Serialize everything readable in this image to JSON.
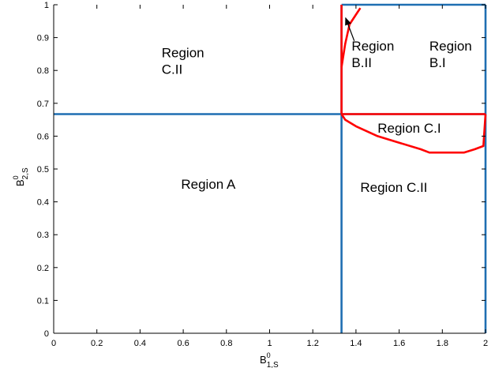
{
  "chart_data": {
    "type": "line",
    "title": "",
    "xlabel": {
      "base": "B",
      "sup": "0",
      "sub": "1,S"
    },
    "ylabel": {
      "base": "B",
      "sup": "0",
      "sub": "2,S"
    },
    "xlim": [
      0,
      2
    ],
    "ylim": [
      0,
      1
    ],
    "xticks": [
      0,
      0.2,
      0.4,
      0.6,
      0.8,
      1,
      1.2,
      1.4,
      1.6,
      1.8,
      2
    ],
    "xtick_labels": [
      "0",
      "0.2",
      "0.4",
      "0.6",
      "0.8",
      "1",
      "1.2",
      "1.4",
      "1.6",
      "1.8",
      "2"
    ],
    "yticks": [
      0,
      0.1,
      0.2,
      0.3,
      0.4,
      0.5,
      0.6,
      0.7,
      0.8,
      0.9,
      1
    ],
    "ytick_labels": [
      "0",
      "0.1",
      "0.2",
      "0.3",
      "0.4",
      "0.5",
      "0.6",
      "0.7",
      "0.8",
      "0.9",
      "1"
    ],
    "grid": false,
    "colors": {
      "boundary": "#1f6fb2",
      "region_curve": "#ff0000",
      "arrow": "#000000"
    },
    "series": [
      {
        "color": "#1f6fb2",
        "x": [
          0,
          2
        ],
        "y": [
          0.667,
          0.667
        ]
      },
      {
        "color": "#1f6fb2",
        "x": [
          1.333,
          1.333
        ],
        "y": [
          0,
          1
        ]
      },
      {
        "color": "#1f6fb2",
        "x": [
          1.333,
          2
        ],
        "y": [
          1,
          1
        ]
      },
      {
        "color": "#1f6fb2",
        "x": [
          2,
          2
        ],
        "y": [
          0,
          1
        ]
      },
      {
        "color": "#ff0000",
        "x": [
          1.333,
          2
        ],
        "y": [
          0.667,
          0.667
        ]
      },
      {
        "color": "#ff0000",
        "x": [
          1.333,
          1.333
        ],
        "y": [
          0.667,
          1
        ]
      },
      {
        "color": "#ff0000",
        "x": [
          1.333,
          1.35,
          1.37,
          1.4,
          1.42
        ],
        "y": [
          0.81,
          0.88,
          0.94,
          0.97,
          0.99
        ]
      },
      {
        "color": "#ff0000",
        "x": [
          1.333,
          1.35,
          1.4,
          1.5,
          1.6,
          1.7,
          1.74,
          1.8,
          1.9,
          1.95,
          1.99,
          2
        ],
        "y": [
          0.667,
          0.65,
          0.63,
          0.6,
          0.58,
          0.56,
          0.55,
          0.55,
          0.55,
          0.56,
          0.57,
          0.667
        ]
      }
    ],
    "annotations": [
      {
        "lines": [
          "Region",
          "C.II"
        ],
        "x": 0.5,
        "y": 0.84
      },
      {
        "lines": [
          "Region",
          "B.II"
        ],
        "x": 1.38,
        "y": 0.86
      },
      {
        "lines": [
          "Region",
          "B.I"
        ],
        "x": 1.74,
        "y": 0.86
      },
      {
        "lines": [
          "Region C.I"
        ],
        "x": 1.5,
        "y": 0.61
      },
      {
        "lines": [
          "Region A"
        ],
        "x": 0.59,
        "y": 0.44
      },
      {
        "lines": [
          "Region C.II"
        ],
        "x": 1.42,
        "y": 0.43
      }
    ],
    "arrow": {
      "from": [
        1.392,
        0.89
      ],
      "to": [
        1.352,
        0.96
      ]
    }
  }
}
